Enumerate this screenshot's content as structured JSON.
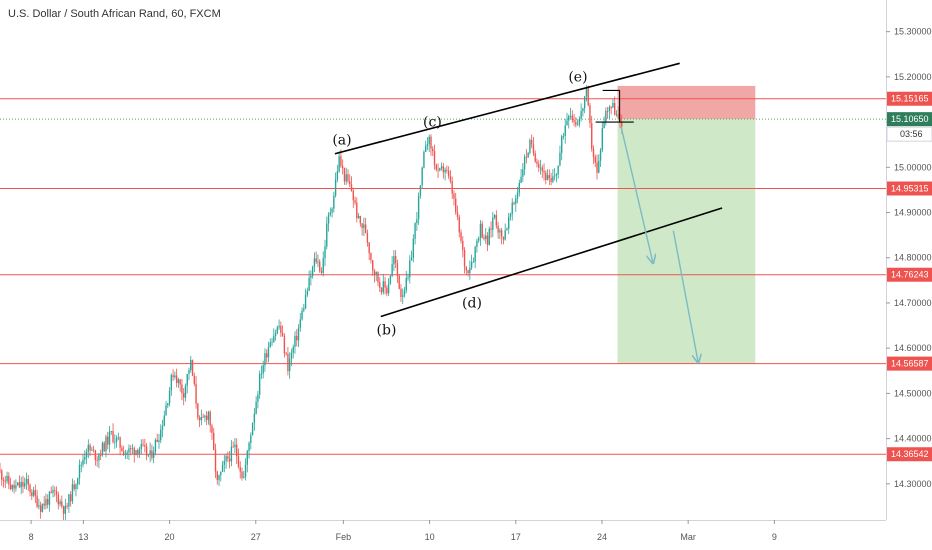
{
  "header": {
    "title": "U.S. Dollar / South African Rand, 60, FXCM"
  },
  "colors": {
    "bull": "#26a69a",
    "bear": "#ef5350",
    "level_line": "#ef5350",
    "level_tag": "#ef5350",
    "current_line": "#4caf50",
    "current_tag": "#2e7d5b",
    "stop_zone": "#f2a7a7",
    "target_zone": "#cfe8c8",
    "arrow": "#7bbcc4",
    "trendline": "#000000",
    "axis_border": "#d1d4dc",
    "axis_text": "#555555"
  },
  "chart_data": {
    "type": "candlestick",
    "symbol": "U.S. Dollar / South African Rand",
    "interval": "60",
    "source": "FXCM",
    "ylim": [
      14.22,
      15.37
    ],
    "xlim": [
      0,
      1254
    ],
    "y_ticks": [
      "15.30000",
      "15.20000",
      "15.10000",
      "15.00000",
      "14.90000",
      "14.80000",
      "14.70000",
      "14.60000",
      "14.50000",
      "14.40000",
      "14.30000"
    ],
    "x_ticks": [
      {
        "label": "8",
        "x": 44
      },
      {
        "label": "13",
        "x": 118
      },
      {
        "label": "20",
        "x": 240
      },
      {
        "label": "27",
        "x": 362
      },
      {
        "label": "Feb",
        "x": 486
      },
      {
        "label": "10",
        "x": 608
      },
      {
        "label": "17",
        "x": 730
      },
      {
        "label": "24",
        "x": 852
      },
      {
        "label": "Mar",
        "x": 974
      },
      {
        "label": "9",
        "x": 1096
      }
    ],
    "price_path": [
      [
        0,
        14.33
      ],
      [
        20,
        14.29
      ],
      [
        40,
        14.3
      ],
      [
        60,
        14.25
      ],
      [
        80,
        14.28
      ],
      [
        95,
        14.24
      ],
      [
        110,
        14.31
      ],
      [
        125,
        14.38
      ],
      [
        140,
        14.36
      ],
      [
        160,
        14.41
      ],
      [
        180,
        14.37
      ],
      [
        200,
        14.38
      ],
      [
        215,
        14.36
      ],
      [
        230,
        14.42
      ],
      [
        248,
        14.55
      ],
      [
        262,
        14.5
      ],
      [
        272,
        14.57
      ],
      [
        285,
        14.43
      ],
      [
        298,
        14.46
      ],
      [
        310,
        14.3
      ],
      [
        322,
        14.35
      ],
      [
        335,
        14.38
      ],
      [
        347,
        14.31
      ],
      [
        360,
        14.44
      ],
      [
        372,
        14.55
      ],
      [
        385,
        14.62
      ],
      [
        398,
        14.65
      ],
      [
        410,
        14.56
      ],
      [
        423,
        14.63
      ],
      [
        436,
        14.72
      ],
      [
        449,
        14.8
      ],
      [
        458,
        14.77
      ],
      [
        466,
        14.88
      ],
      [
        474,
        14.93
      ],
      [
        482,
        15.02
      ],
      [
        490,
        14.98
      ],
      [
        500,
        14.95
      ],
      [
        510,
        14.88
      ],
      [
        520,
        14.86
      ],
      [
        530,
        14.78
      ],
      [
        540,
        14.74
      ],
      [
        550,
        14.73
      ],
      [
        560,
        14.8
      ],
      [
        570,
        14.72
      ],
      [
        580,
        14.75
      ],
      [
        590,
        14.87
      ],
      [
        598,
        14.96
      ],
      [
        606,
        15.07
      ],
      [
        614,
        15.04
      ],
      [
        622,
        14.98
      ],
      [
        632,
        15.0
      ],
      [
        642,
        14.95
      ],
      [
        652,
        14.86
      ],
      [
        662,
        14.77
      ],
      [
        672,
        14.8
      ],
      [
        682,
        14.87
      ],
      [
        692,
        14.83
      ],
      [
        702,
        14.9
      ],
      [
        712,
        14.84
      ],
      [
        722,
        14.88
      ],
      [
        732,
        14.93
      ],
      [
        742,
        15.0
      ],
      [
        752,
        15.05
      ],
      [
        762,
        15.02
      ],
      [
        772,
        14.99
      ],
      [
        782,
        14.96
      ],
      [
        792,
        15.0
      ],
      [
        800,
        15.08
      ],
      [
        808,
        15.13
      ],
      [
        816,
        15.1
      ],
      [
        824,
        15.11
      ],
      [
        832,
        15.17
      ],
      [
        840,
        15.05
      ],
      [
        848,
        14.98
      ],
      [
        856,
        15.1
      ],
      [
        864,
        15.14
      ],
      [
        872,
        15.13
      ],
      [
        880,
        15.09
      ]
    ],
    "horizontal_levels": [
      {
        "price": 15.15165,
        "label": "15.15165"
      },
      {
        "price": 14.95315,
        "label": "14.95315"
      },
      {
        "price": 14.76243,
        "label": "14.76243"
      },
      {
        "price": 14.56587,
        "label": "14.56587"
      },
      {
        "price": 14.36542,
        "label": "14.36542"
      }
    ],
    "current_price": {
      "price": 15.1065,
      "label": "15.10650",
      "countdown": "03:56"
    },
    "trendlines": [
      {
        "name": "upper-channel",
        "from": [
          474,
          15.03
        ],
        "to": [
          962,
          15.23
        ]
      },
      {
        "name": "lower-channel",
        "from": [
          539,
          14.67
        ],
        "to": [
          1022,
          14.91
        ]
      }
    ],
    "short_position": {
      "x_start": 874,
      "x_end": 1069,
      "entry": 15.1065,
      "stop": 15.18,
      "target": 14.56587
    },
    "triangle_top": {
      "from_x": 853,
      "to_x": 877,
      "price": 15.17
    },
    "triangle_bottom": {
      "from_x": 843,
      "to_x": 897,
      "price": 15.1
    },
    "forecast_arrows": [
      {
        "from": [
          879,
          15.09
        ],
        "to": [
          924,
          14.79
        ]
      },
      {
        "from": [
          953,
          14.86
        ],
        "to": [
          988,
          14.57
        ]
      }
    ],
    "wave_labels": [
      {
        "label": "(a)",
        "x": 484,
        "price": 15.05
      },
      {
        "label": "(b)",
        "x": 547,
        "price": 14.63
      },
      {
        "label": "(c)",
        "x": 612,
        "price": 15.09
      },
      {
        "label": "(d)",
        "x": 668,
        "price": 14.69
      },
      {
        "label": "(e)",
        "x": 818,
        "price": 15.19
      }
    ]
  }
}
